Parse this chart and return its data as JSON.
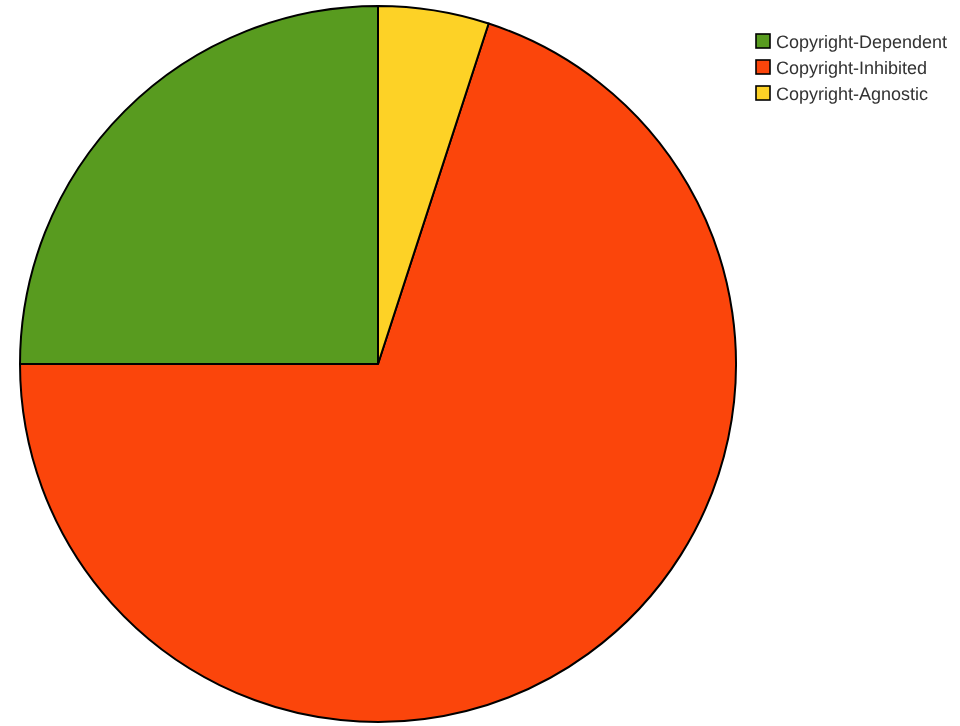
{
  "chart_data": {
    "type": "pie",
    "categories": [
      "Copyright-Dependent",
      "Copyright-Inhibited",
      "Copyright-Agnostic"
    ],
    "values": [
      25,
      70,
      5
    ],
    "colors": [
      "#589b1f",
      "#fb450b",
      "#fdd226"
    ],
    "legend": "top right"
  }
}
